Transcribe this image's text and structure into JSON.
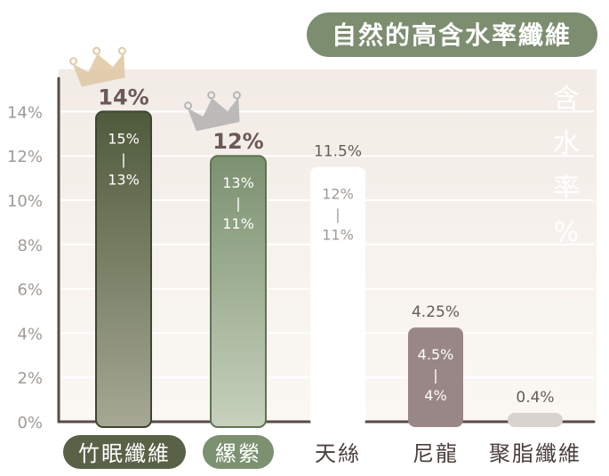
{
  "chart_data": {
    "type": "bar",
    "title": "自然的高含水率纖維",
    "ylabel": "含水率%",
    "ylabel_chars": [
      "含",
      "水",
      "率",
      "%"
    ],
    "ylim": [
      0,
      14
    ],
    "yticks": [
      0,
      2,
      4,
      6,
      8,
      10,
      12,
      14
    ],
    "ytick_labels": [
      "0%",
      "2%",
      "4%",
      "6%",
      "8%",
      "10%",
      "12%",
      "14%"
    ],
    "grid": true,
    "categories": [
      "竹眠纖維",
      "縲縈",
      "天絲",
      "尼龍",
      "聚脂纖維"
    ],
    "values": [
      14,
      12,
      11.5,
      4.25,
      0.4
    ],
    "value_labels": [
      "14%",
      "12%",
      "11.5%",
      "4.25%",
      "0.4%"
    ],
    "range_labels": [
      [
        "15%",
        "13%"
      ],
      [
        "13%",
        "11%"
      ],
      [
        "12%",
        "11%"
      ],
      [
        "4.5%",
        "4%"
      ],
      []
    ],
    "range_separator": "|",
    "crowns": [
      "gold",
      "silver",
      "",
      "",
      ""
    ],
    "colors": {
      "bar_top": [
        "#4f5a3c",
        "#7b9170",
        "#ffffff",
        "#998686",
        "#d9d3cf"
      ],
      "bar_bottom": [
        "#a6a893",
        "#c7d1bd",
        "#ffffff",
        "#998686",
        "#d9d3cf"
      ],
      "title_bg": "#7c8d70",
      "axis": "#5b4a4a",
      "tick_text": "#a09a95",
      "value_text_highlight": "#6b5858",
      "value_text": "#665b57",
      "gold_crown": "#e0c9a6",
      "silver_crown": "#b5b5b5",
      "background_top": "#f4ede8",
      "background_bottom": "#fbf8f4",
      "category_pill_1": "#596247",
      "category_pill_2": "#7b9170"
    }
  }
}
